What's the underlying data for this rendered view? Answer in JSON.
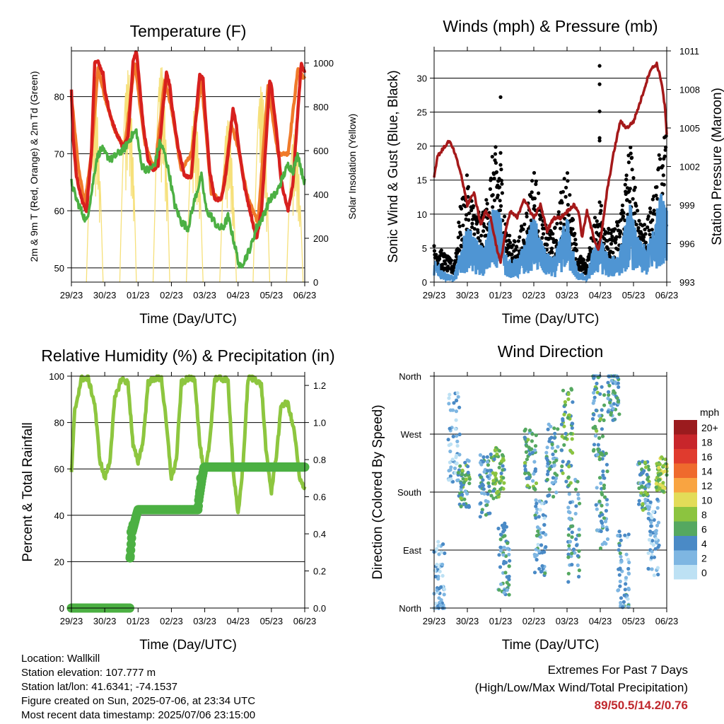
{
  "info": {
    "location": "Location: Wallkill",
    "elevation": "Station elevation: 107.777 m",
    "latlon": "Station lat/lon: 41.6341; -74.1537",
    "created": "Figure created on Sun, 2025-07-06, at 23:34 UTC",
    "recent": "Most recent data timestamp: 2025/07/06 23:15:00"
  },
  "extremes": {
    "title": "Extremes For Past 7 Days",
    "subtitle": "(High/Low/Max Wind/Total Precipitation)",
    "values": "89/50.5/14.2/0.76"
  },
  "colors": {
    "temp_2m": "#d7201e",
    "temp_9m": "#f07a2a",
    "dewpoint": "#4cb043",
    "insolation": "#f6e07a",
    "gust": "#000000",
    "sonic_wind": "#4f95d3",
    "pressure": "#a5191a",
    "rh": "#8dc63f",
    "precip": "#4cb043"
  },
  "chart_data": [
    {
      "type": "line",
      "title": "Temperature (F)",
      "xlabel": "Time (Day/UTC)",
      "ylabel": "2m & 9m T (Red, Orange) & 2m Td (Green)",
      "ylabel_right": "Solar Insolation (Yellow)",
      "x_ticks": [
        "29/23",
        "30/23",
        "01/23",
        "02/23",
        "03/23",
        "04/23",
        "05/23",
        "06/23"
      ],
      "y_ticks": [
        50,
        60,
        70,
        80
      ],
      "y_ticks_right": [
        0,
        200,
        400,
        600,
        800,
        1000
      ],
      "ylim": [
        47.5,
        88
      ],
      "ylim_right": [
        0,
        1055
      ],
      "grid": true,
      "series": [
        {
          "name": "2m T",
          "color": "#d7201e",
          "x": [
            0,
            0.05,
            0.15,
            0.3,
            0.45,
            0.6,
            0.7,
            0.8,
            0.95,
            1.0,
            1.2,
            1.4,
            1.55,
            1.7,
            1.85,
            1.95,
            2.0,
            2.15,
            2.3,
            2.45,
            2.6,
            2.7,
            2.85,
            2.95,
            3.0,
            3.2,
            3.4,
            3.6,
            3.7,
            3.85,
            3.95,
            4.0,
            4.15,
            4.3,
            4.5,
            4.6,
            4.7,
            4.85,
            4.95,
            5.0,
            5.2,
            5.4,
            5.55,
            5.7,
            5.85,
            5.95,
            6.0,
            6.15,
            6.3,
            6.5,
            6.65,
            6.8,
            6.9,
            7.0
          ],
          "y": [
            81,
            73,
            66,
            62,
            60,
            70,
            86,
            86,
            84,
            81,
            76,
            73,
            71,
            73,
            86,
            88,
            85,
            75,
            69,
            67,
            68,
            75,
            84,
            82,
            79,
            71,
            66,
            66,
            74,
            84,
            83,
            78,
            67,
            62,
            62,
            65,
            70,
            78,
            75,
            72,
            64,
            59,
            55,
            60,
            73,
            83,
            82,
            74,
            65,
            60,
            65,
            78,
            86,
            84
          ]
        },
        {
          "name": "9m T",
          "color": "#f07a2a",
          "x": [
            0,
            0.2,
            0.4,
            0.6,
            0.8,
            1.0,
            1.3,
            1.6,
            1.9,
            2.2,
            2.5,
            2.8,
            3.0,
            3.3,
            3.6,
            3.9,
            4.2,
            4.5,
            4.8,
            5.0,
            5.3,
            5.6,
            5.9,
            6.2,
            6.5,
            6.8,
            7.0
          ],
          "y": [
            80,
            68,
            61,
            70,
            85,
            80,
            74,
            71,
            86,
            72,
            67,
            83,
            78,
            67,
            70,
            83,
            63,
            62,
            75,
            71,
            62,
            58,
            82,
            70,
            70,
            85,
            83
          ]
        },
        {
          "name": "2m Td",
          "color": "#4cb043",
          "x": [
            0,
            0.15,
            0.3,
            0.45,
            0.6,
            0.75,
            0.9,
            1.0,
            1.2,
            1.4,
            1.6,
            1.8,
            1.95,
            2.1,
            2.3,
            2.5,
            2.65,
            2.8,
            2.95,
            3.1,
            3.3,
            3.5,
            3.7,
            3.9,
            4.05,
            4.2,
            4.4,
            4.55,
            4.7,
            4.9,
            5.05,
            5.25,
            5.4,
            5.55,
            5.75,
            5.95,
            6.15,
            6.35,
            6.5,
            6.65,
            6.8,
            6.9,
            7.0
          ],
          "y": [
            65,
            62,
            60,
            58,
            63,
            69,
            71,
            70,
            69,
            70,
            71,
            73,
            74,
            68,
            67,
            68,
            72,
            70,
            66,
            61,
            58,
            57,
            62,
            66,
            60,
            59,
            57,
            57,
            59,
            54,
            50,
            52,
            54,
            57,
            59,
            62,
            63,
            66,
            68,
            67,
            70,
            67,
            65
          ]
        },
        {
          "name": "Solar Insolation",
          "color": "#f6e07a",
          "axis": "right",
          "daytime_start": 0.45,
          "daytime_end": 0.95,
          "daily_peaks": [
            0,
            870,
            970,
            1000,
            800,
            750,
            900,
            700
          ]
        }
      ]
    },
    {
      "type": "line",
      "title": "Winds (mph) & Pressure (mb)",
      "xlabel": "Time (Day/UTC)",
      "ylabel": "Sonic Wind & Gust (Blue, Black)",
      "ylabel_right": "Station Pressure (Maroon)",
      "x_ticks": [
        "29/23",
        "30/23",
        "01/23",
        "02/23",
        "03/23",
        "04/23",
        "05/23",
        "06/23"
      ],
      "y_ticks": [
        0,
        5,
        10,
        15,
        20,
        25,
        30
      ],
      "y_ticks_right": [
        993,
        996,
        999,
        1002,
        1005,
        1008,
        1011
      ],
      "ylim": [
        0,
        34
      ],
      "ylim_right": [
        993,
        1011
      ],
      "grid": true,
      "series": [
        {
          "name": "Gust",
          "color": "#000000",
          "x": [
            0,
            0.3,
            0.6,
            0.8,
            1.0,
            1.2,
            1.5,
            1.8,
            2.0,
            2.2,
            2.5,
            2.8,
            3.0,
            3.3,
            3.6,
            3.8,
            4.0,
            4.3,
            4.6,
            4.8,
            5.0,
            5.3,
            5.6,
            5.9,
            6.1,
            6.4,
            6.6,
            6.9,
            7.0
          ],
          "y": [
            4,
            3,
            2,
            8,
            11,
            8,
            7,
            14,
            13,
            5,
            4,
            8,
            12,
            6,
            5,
            9,
            12,
            3,
            2,
            6,
            9,
            5,
            7,
            15,
            8,
            6,
            9,
            16,
            15
          ],
          "outliers": [
            [
              2.0,
              27.2
            ],
            [
              2.0,
              19
            ],
            [
              4.98,
              31.8
            ],
            [
              4.98,
              29.1
            ],
            [
              4.98,
              25.1
            ],
            [
              4.98,
              21.2
            ],
            [
              4.98,
              20.8
            ]
          ]
        },
        {
          "name": "Sonic Wind",
          "color": "#4f95d3",
          "x": [
            0,
            0.3,
            0.6,
            0.8,
            1.0,
            1.2,
            1.5,
            1.8,
            2.0,
            2.2,
            2.5,
            2.8,
            3.0,
            3.3,
            3.6,
            3.8,
            4.0,
            4.3,
            4.6,
            4.8,
            5.0,
            5.3,
            5.6,
            5.9,
            6.1,
            6.4,
            6.6,
            6.9,
            7.0
          ],
          "y": [
            2,
            1,
            0.5,
            3,
            5,
            4,
            3,
            7,
            6,
            2,
            2,
            4,
            6,
            3,
            2,
            4,
            6,
            1,
            0.5,
            3,
            4,
            2,
            3,
            7,
            4,
            3,
            5,
            9,
            8
          ]
        },
        {
          "name": "Station Pressure",
          "color": "#a5191a",
          "axis": "right",
          "x": [
            0,
            0.1,
            0.25,
            0.45,
            0.6,
            0.8,
            1.0,
            1.2,
            1.4,
            1.55,
            1.7,
            1.9,
            2.0,
            2.15,
            2.3,
            2.5,
            2.7,
            2.9,
            3.0,
            3.2,
            3.4,
            3.6,
            3.8,
            4.0,
            4.2,
            4.35,
            4.45,
            4.6,
            4.8,
            4.95,
            5.05,
            5.2,
            5.4,
            5.6,
            5.8,
            6.0,
            6.2,
            6.5,
            6.7,
            6.85,
            6.95,
            7.0
          ],
          "y": [
            1001.2,
            1002.8,
            1003.3,
            1004,
            1003.2,
            1001.5,
            999,
            1000,
            997.5,
            998.5,
            998,
            995.5,
            994.5,
            997,
            998.5,
            998,
            999.5,
            998.5,
            998,
            999,
            997,
            998,
            998,
            998.5,
            999,
            998.5,
            996.5,
            998.5,
            996.5,
            995.5,
            997,
            1000,
            1003,
            1005.5,
            1005,
            1005.5,
            1007,
            1009.5,
            1010,
            1008.5,
            1006.5,
            1004.5
          ]
        }
      ]
    },
    {
      "type": "line",
      "title": "Relative Humidity (%) & Precipitation (in)",
      "xlabel": "Time (Day/UTC)",
      "ylabel": "Percent & Total Rainfall",
      "x_ticks": [
        "29/23",
        "30/23",
        "01/23",
        "02/23",
        "03/23",
        "04/23",
        "05/23",
        "06/23"
      ],
      "y_ticks": [
        0,
        20,
        40,
        60,
        80,
        100
      ],
      "y_ticks_right": [
        "0.0",
        "0.2",
        "0.4",
        "0.6",
        "0.8",
        "1.0",
        "1.2"
      ],
      "ylim": [
        0,
        100
      ],
      "ylim_right": [
        0,
        1.25
      ],
      "grid": true,
      "series": [
        {
          "name": "Relative Humidity",
          "color": "#8dc63f",
          "x": [
            0,
            0.1,
            0.3,
            0.5,
            0.7,
            0.85,
            1.0,
            1.15,
            1.3,
            1.5,
            1.7,
            1.85,
            2.0,
            2.15,
            2.3,
            2.5,
            2.7,
            2.85,
            3.0,
            3.15,
            3.3,
            3.5,
            3.7,
            3.85,
            4.0,
            4.15,
            4.3,
            4.5,
            4.7,
            4.85,
            5.0,
            5.15,
            5.3,
            5.5,
            5.7,
            5.85,
            6.0,
            6.15,
            6.3,
            6.5,
            6.7,
            6.85,
            7.0
          ],
          "y": [
            58,
            85,
            99,
            99,
            88,
            64,
            56,
            63,
            90,
            99,
            97,
            70,
            63,
            72,
            97,
            99,
            99,
            79,
            56,
            64,
            97,
            99,
            99,
            71,
            56,
            72,
            99,
            99,
            98,
            60,
            40,
            62,
            99,
            99,
            96,
            66,
            50,
            66,
            88,
            88,
            75,
            55,
            52
          ]
        },
        {
          "name": "Total Precipitation",
          "color": "#4cb043",
          "axis": "right",
          "x": [
            0,
            1.75,
            1.76,
            1.82,
            1.88,
            1.95,
            2.0,
            2.6,
            3.8,
            3.82,
            3.86,
            3.92,
            3.98,
            4.4,
            7.0
          ],
          "y": [
            0,
            0,
            0.27,
            0.41,
            0.45,
            0.5,
            0.53,
            0.53,
            0.53,
            0.58,
            0.63,
            0.7,
            0.76,
            0.76,
            0.76
          ]
        }
      ]
    },
    {
      "type": "scatter",
      "title": "Wind Direction",
      "xlabel": "Time (Day/UTC)",
      "ylabel": "Direction (Colored By Speed)",
      "x_ticks": [
        "29/23",
        "30/23",
        "01/23",
        "02/23",
        "03/23",
        "04/23",
        "05/23",
        "06/23"
      ],
      "y_ticks": [
        "North",
        "East",
        "South",
        "West",
        "North"
      ],
      "y_tick_degrees": [
        0,
        90,
        180,
        270,
        360
      ],
      "ylim": [
        0,
        360
      ],
      "grid": true,
      "legend": {
        "title": "mph",
        "placement": "right",
        "labels": [
          "20+",
          "18",
          "16",
          "14",
          "12",
          "10",
          "8",
          "6",
          "4",
          "2",
          "0"
        ],
        "colors": [
          "#9b1b1e",
          "#c8262b",
          "#e03b2e",
          "#ef6a2d",
          "#f9a441",
          "#e3dc58",
          "#8cc43f",
          "#55a860",
          "#4a8ac6",
          "#7eb6e2",
          "#bde1f4"
        ]
      },
      "clusters": [
        {
          "x": 0.15,
          "dir": 45,
          "spread": 60,
          "speed": 2
        },
        {
          "x": 0.6,
          "dir": 265,
          "spread": 70,
          "speed": 2
        },
        {
          "x": 0.9,
          "dir": 195,
          "spread": 40,
          "speed": 5
        },
        {
          "x": 1.55,
          "dir": 190,
          "spread": 50,
          "speed": 4
        },
        {
          "x": 1.95,
          "dir": 210,
          "spread": 40,
          "speed": 7
        },
        {
          "x": 2.1,
          "dir": 80,
          "spread": 60,
          "speed": 4
        },
        {
          "x": 2.9,
          "dir": 230,
          "spread": 50,
          "speed": 5
        },
        {
          "x": 3.2,
          "dir": 110,
          "spread": 60,
          "speed": 3
        },
        {
          "x": 3.55,
          "dir": 230,
          "spread": 60,
          "speed": 4
        },
        {
          "x": 4.0,
          "dir": 270,
          "spread": 80,
          "speed": 6
        },
        {
          "x": 4.2,
          "dir": 120,
          "spread": 80,
          "speed": 4
        },
        {
          "x": 4.95,
          "dir": 300,
          "spread": 70,
          "speed": 5
        },
        {
          "x": 5.05,
          "dir": 170,
          "spread": 80,
          "speed": 4
        },
        {
          "x": 5.4,
          "dir": 330,
          "spread": 40,
          "speed": 4
        },
        {
          "x": 5.7,
          "dir": 60,
          "spread": 60,
          "speed": 3
        },
        {
          "x": 6.3,
          "dir": 190,
          "spread": 40,
          "speed": 5
        },
        {
          "x": 6.6,
          "dir": 110,
          "spread": 60,
          "speed": 2
        },
        {
          "x": 6.85,
          "dir": 210,
          "spread": 30,
          "speed": 8
        }
      ]
    }
  ]
}
